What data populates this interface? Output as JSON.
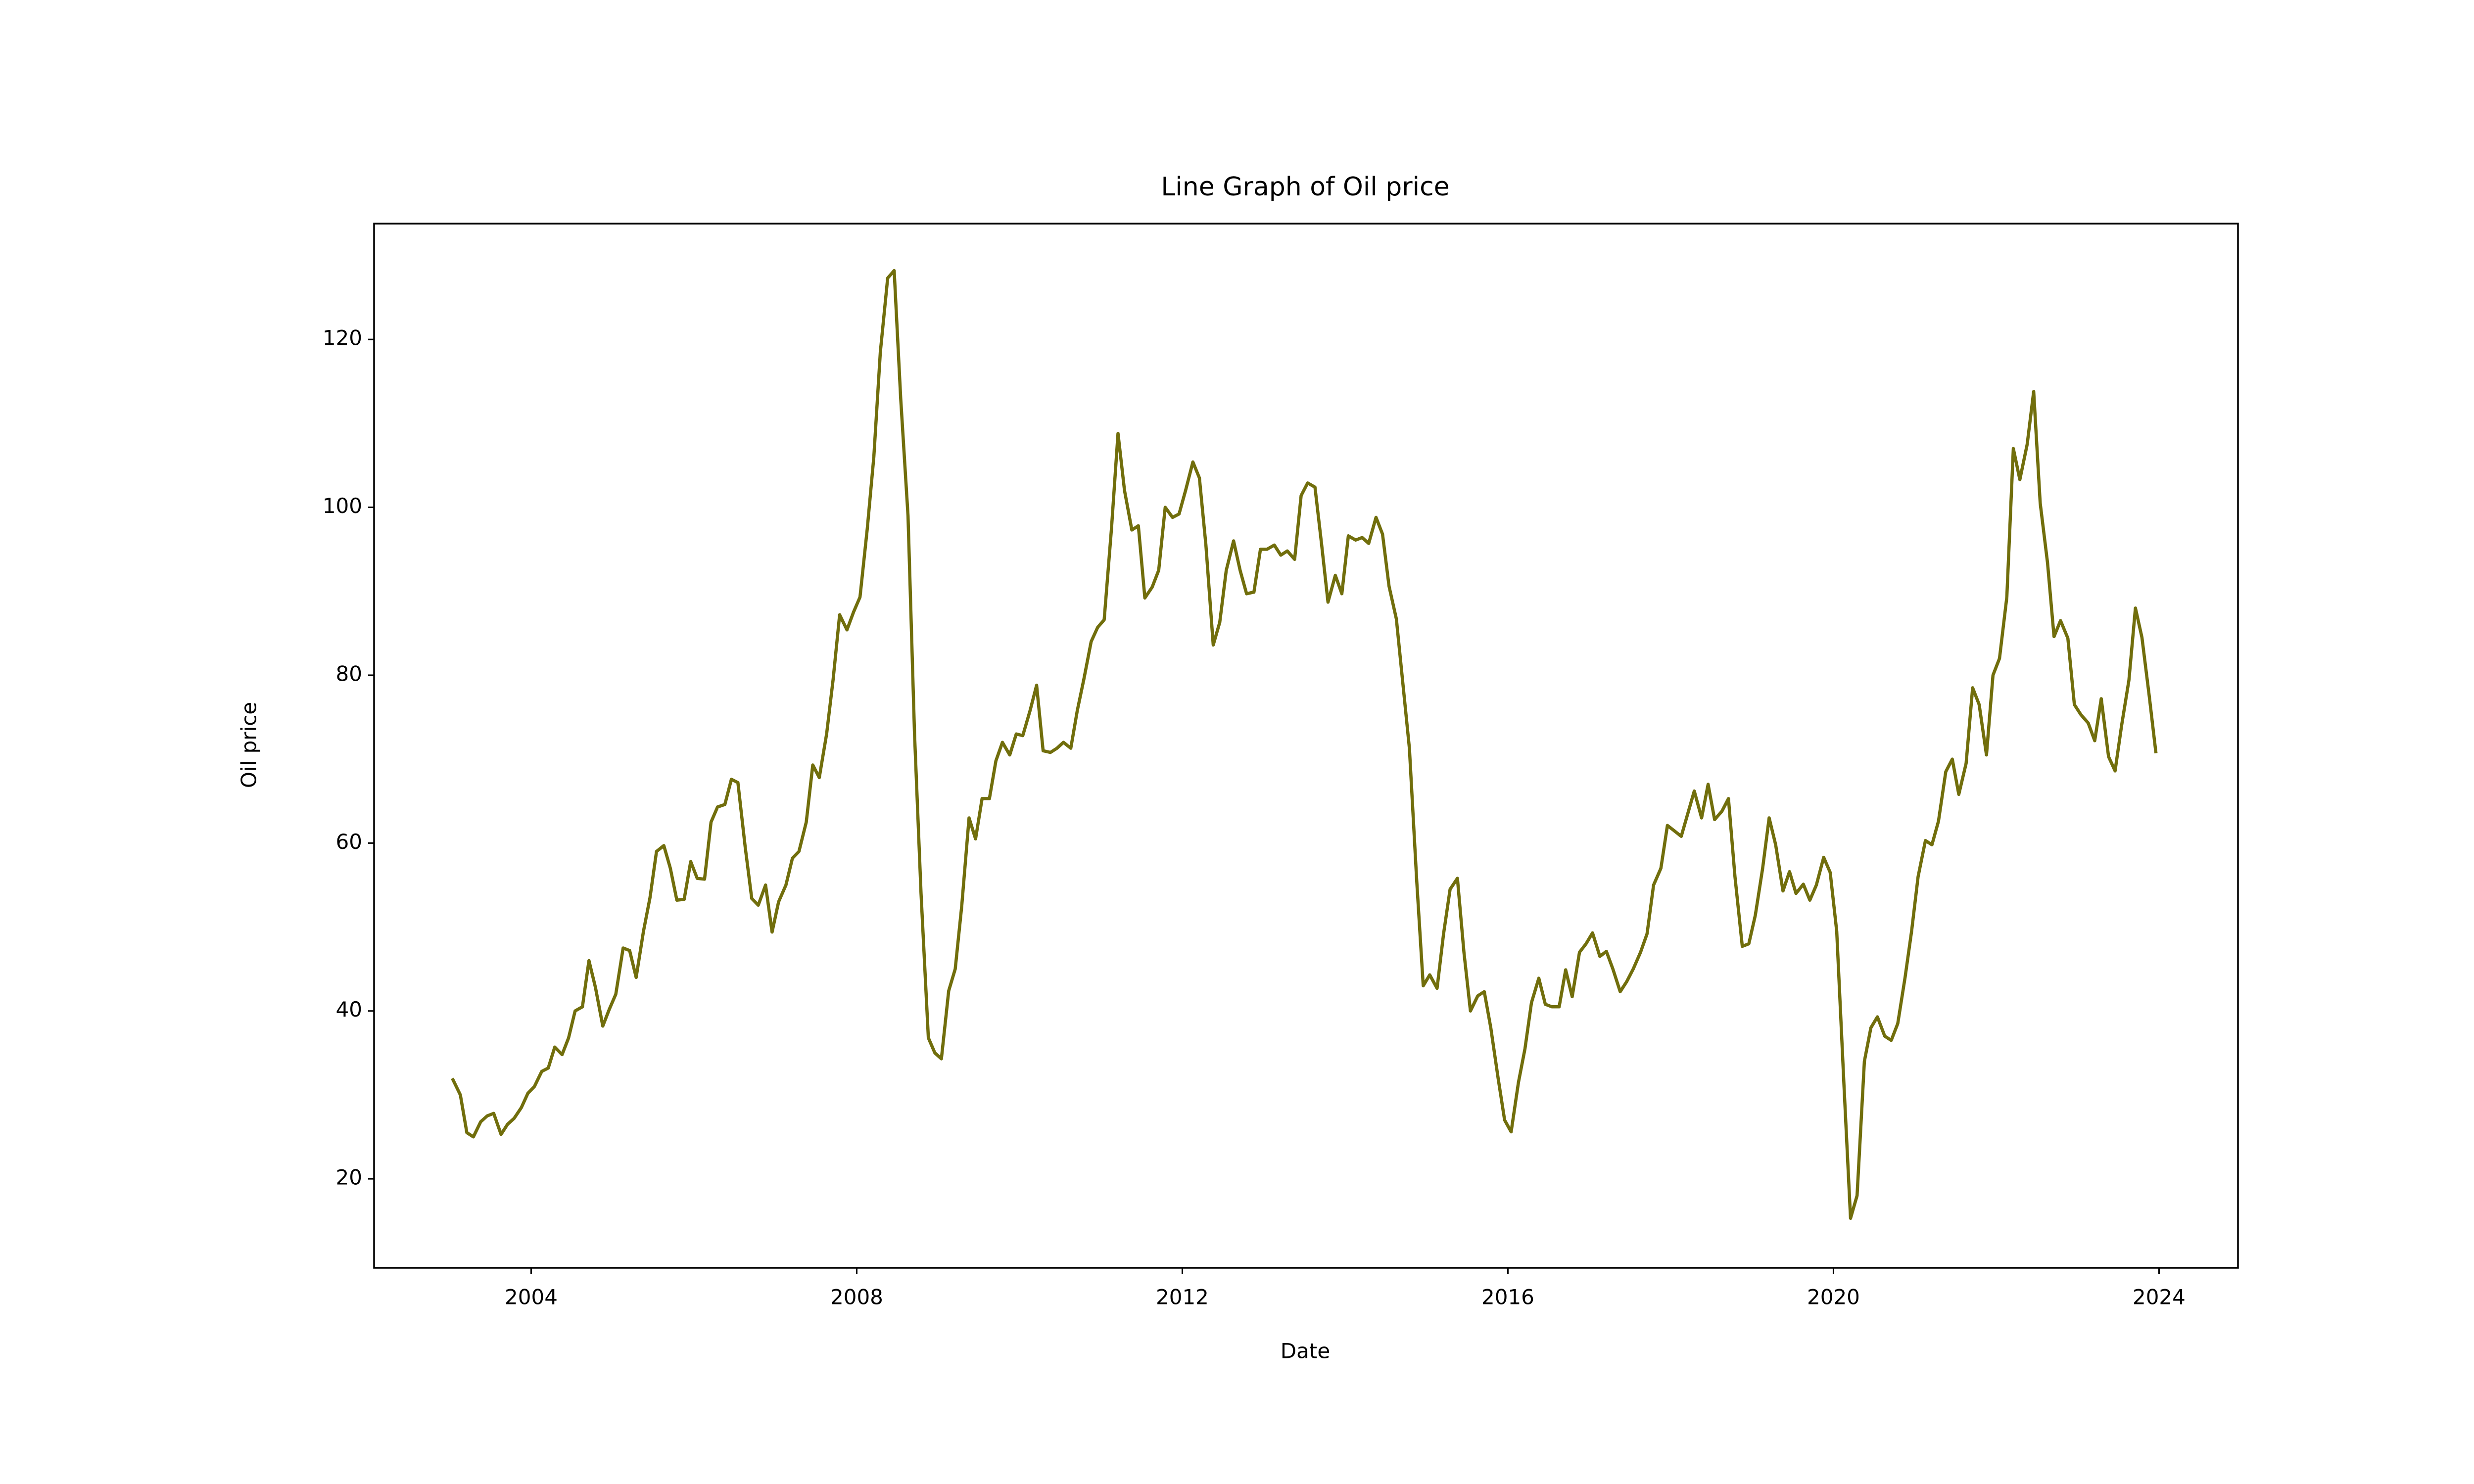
{
  "chart_data": {
    "type": "line",
    "title": "Line Graph of Oil price",
    "xlabel": "Date",
    "ylabel": "Oil price",
    "color": "#716e0c",
    "xlim": [
      2002.07,
      2024.97
    ],
    "ylim": [
      9.4,
      133.8
    ],
    "xticks": [
      2004,
      2008,
      2012,
      2016,
      2020,
      2024
    ],
    "yticks": [
      20,
      40,
      60,
      80,
      100,
      120
    ],
    "x": [
      2003.04,
      2003.13,
      2003.21,
      2003.29,
      2003.38,
      2003.46,
      2003.54,
      2003.63,
      2003.71,
      2003.79,
      2003.88,
      2003.96,
      2004.04,
      2004.13,
      2004.21,
      2004.29,
      2004.38,
      2004.46,
      2004.54,
      2004.63,
      2004.71,
      2004.79,
      2004.88,
      2004.96,
      2005.04,
      2005.13,
      2005.21,
      2005.29,
      2005.38,
      2005.46,
      2005.54,
      2005.63,
      2005.71,
      2005.79,
      2005.88,
      2005.96,
      2006.04,
      2006.13,
      2006.21,
      2006.29,
      2006.38,
      2006.46,
      2006.54,
      2006.63,
      2006.71,
      2006.79,
      2006.88,
      2006.96,
      2007.04,
      2007.13,
      2007.21,
      2007.29,
      2007.38,
      2007.46,
      2007.54,
      2007.63,
      2007.71,
      2007.79,
      2007.88,
      2007.96,
      2008.04,
      2008.13,
      2008.21,
      2008.29,
      2008.38,
      2008.46,
      2008.54,
      2008.63,
      2008.71,
      2008.79,
      2008.88,
      2008.96,
      2009.04,
      2009.13,
      2009.21,
      2009.29,
      2009.38,
      2009.46,
      2009.54,
      2009.63,
      2009.71,
      2009.79,
      2009.88,
      2009.96,
      2010.04,
      2010.13,
      2010.21,
      2010.29,
      2010.38,
      2010.46,
      2010.54,
      2010.63,
      2010.71,
      2010.79,
      2010.88,
      2010.96,
      2011.04,
      2011.13,
      2011.21,
      2011.29,
      2011.38,
      2011.46,
      2011.54,
      2011.63,
      2011.71,
      2011.79,
      2011.88,
      2011.96,
      2012.04,
      2012.13,
      2012.21,
      2012.29,
      2012.38,
      2012.46,
      2012.54,
      2012.63,
      2012.71,
      2012.79,
      2012.88,
      2012.96,
      2013.04,
      2013.13,
      2013.21,
      2013.29,
      2013.38,
      2013.46,
      2013.54,
      2013.63,
      2013.71,
      2013.79,
      2013.88,
      2013.96,
      2014.04,
      2014.13,
      2014.21,
      2014.29,
      2014.38,
      2014.46,
      2014.54,
      2014.63,
      2014.71,
      2014.79,
      2014.88,
      2014.96,
      2015.04,
      2015.13,
      2015.21,
      2015.29,
      2015.38,
      2015.46,
      2015.54,
      2015.63,
      2015.71,
      2015.79,
      2015.88,
      2015.96,
      2016.04,
      2016.13,
      2016.21,
      2016.29,
      2016.38,
      2016.46,
      2016.54,
      2016.63,
      2016.71,
      2016.79,
      2016.88,
      2016.96,
      2017.04,
      2017.13,
      2017.21,
      2017.29,
      2017.38,
      2017.46,
      2017.54,
      2017.63,
      2017.71,
      2017.79,
      2017.88,
      2017.96,
      2018.04,
      2018.13,
      2018.21,
      2018.29,
      2018.38,
      2018.46,
      2018.54,
      2018.63,
      2018.71,
      2018.79,
      2018.88,
      2018.96,
      2019.04,
      2019.13,
      2019.21,
      2019.29,
      2019.38,
      2019.46,
      2019.54,
      2019.63,
      2019.71,
      2019.79,
      2019.88,
      2019.96,
      2020.04,
      2020.13,
      2020.21,
      2020.29,
      2020.38,
      2020.46,
      2020.54,
      2020.63,
      2020.71,
      2020.79,
      2020.88,
      2020.96,
      2021.04,
      2021.13,
      2021.21,
      2021.29,
      2021.38,
      2021.46,
      2021.54,
      2021.63,
      2021.71,
      2021.79,
      2021.88,
      2021.96,
      2022.04,
      2022.13,
      2022.21,
      2022.29,
      2022.38,
      2022.46,
      2022.54,
      2022.63,
      2022.71,
      2022.79,
      2022.88,
      2022.96,
      2023.04,
      2023.13,
      2023.21,
      2023.29,
      2023.38,
      2023.46,
      2023.54,
      2023.63,
      2023.71,
      2023.79,
      2023.88,
      2023.96
    ],
    "values": [
      31.8,
      30,
      25.5,
      25,
      26.8,
      27.5,
      27.8,
      25.3,
      26.5,
      27.2,
      28.5,
      30.2,
      31,
      32.8,
      33.2,
      35.7,
      34.8,
      36.8,
      40,
      40.5,
      46,
      42.8,
      38.2,
      40.2,
      42,
      47.5,
      47.2,
      44,
      49.5,
      53.5,
      59,
      59.7,
      57,
      53.2,
      53.3,
      57.8,
      55.8,
      55.7,
      62.5,
      64.3,
      64.6,
      67.6,
      67.2,
      59.5,
      53.4,
      52.6,
      55,
      49.4,
      53,
      55,
      58.2,
      59,
      62.5,
      69.3,
      67.8,
      73,
      79.5,
      87.2,
      85.4,
      87.5,
      89.3,
      97.5,
      106,
      118.5,
      127.3,
      128.2,
      113,
      99,
      73,
      54,
      36.8,
      35,
      34.3,
      42.4,
      45,
      52.5,
      63,
      60.5,
      65.3,
      65.3,
      69.8,
      72,
      70.5,
      73,
      72.8,
      75.8,
      78.8,
      71,
      70.8,
      71.3,
      72,
      71.3,
      75.8,
      79.5,
      84,
      85.7,
      86.6,
      97.5,
      108.8,
      102,
      97.3,
      97.8,
      89.2,
      90.5,
      92.5,
      100,
      98.8,
      99.2,
      102,
      105.4,
      103.5,
      95.5,
      83.6,
      86.3,
      92.5,
      96,
      92.5,
      89.7,
      89.9,
      95,
      95,
      95.5,
      94.3,
      94.8,
      93.8,
      101.4,
      102.9,
      102.4,
      95.7,
      88.7,
      91.9,
      89.7,
      96.6,
      96.1,
      96.4,
      95.7,
      98.8,
      96.8,
      90.6,
      86.7,
      79,
      71.3,
      55.5,
      43,
      44.3,
      42.7,
      49.2,
      54.5,
      55.8,
      47,
      40,
      41.8,
      42.3,
      38,
      32,
      27,
      25.6,
      31.5,
      35.5,
      41,
      43.9,
      40.8,
      40.5,
      40.5,
      44.9,
      41.7,
      47,
      48,
      49.3,
      46.5,
      47.1,
      45,
      42.3,
      43.5,
      45,
      47,
      49.2,
      55,
      57,
      62.1,
      61.5,
      60.8,
      63.5,
      66.2,
      63,
      67,
      62.8,
      63.8,
      65.3,
      56,
      47.7,
      48,
      51.4,
      57,
      63,
      59.8,
      54.3,
      56.6,
      54,
      55.1,
      53.2,
      55,
      58.3,
      56.5,
      49.5,
      31,
      15.3,
      18,
      34,
      38,
      39.3,
      37,
      36.5,
      38.5,
      44,
      49.5,
      56,
      60.3,
      59.8,
      62.6,
      68.5,
      70,
      65.8,
      69.5,
      78.5,
      76.5,
      70.5,
      80,
      82,
      89.3,
      107,
      103.3,
      107.5,
      113.8,
      100.5,
      93.4,
      84.6,
      86.5,
      84.4,
      76.5,
      75.3,
      74.3,
      72.2,
      77.2,
      70.3,
      68.6,
      74,
      79.4,
      88,
      84.5,
      77.5,
      70.9
    ]
  }
}
